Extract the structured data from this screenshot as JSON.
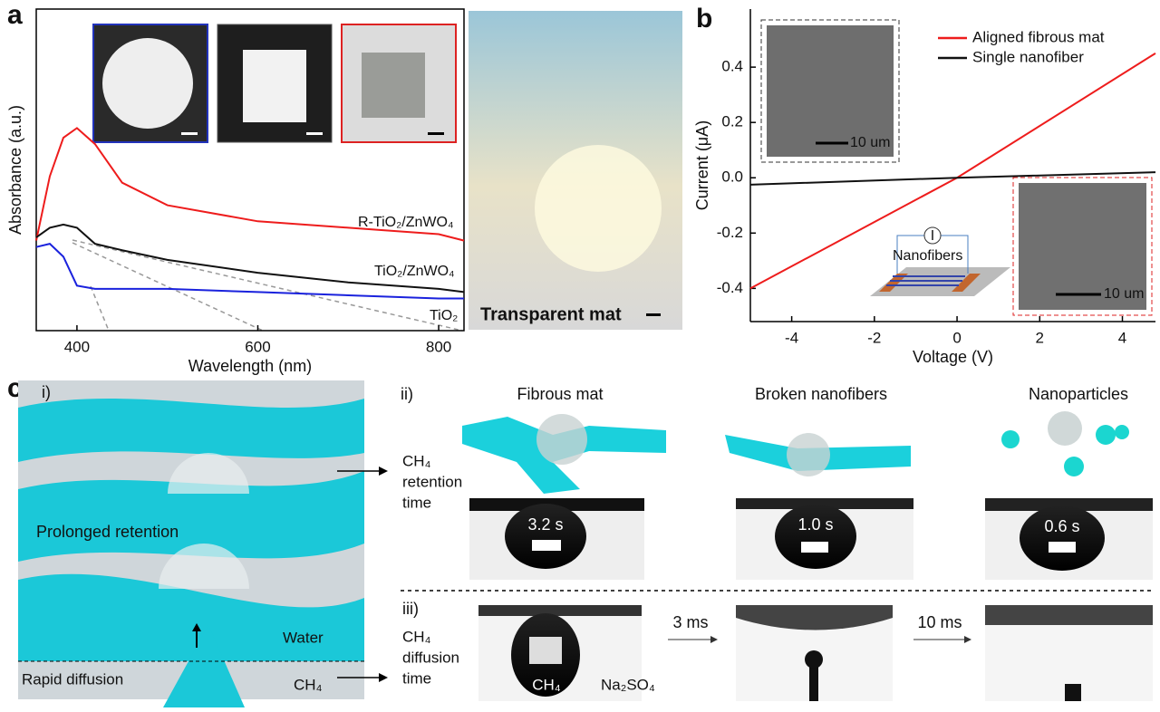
{
  "panel_labels": [
    "a",
    "b",
    "c"
  ],
  "chart_data": [
    {
      "type": "line",
      "x_label": "Wavelength (nm)",
      "y_label": "Absorbance (a.u.)",
      "x": [
        355,
        370,
        385,
        400,
        420,
        450,
        500,
        600,
        700,
        800,
        828
      ],
      "xlim": [
        355,
        828
      ],
      "xticks": [
        400,
        600,
        800
      ],
      "ylim": [
        0,
        1
      ],
      "frame": true,
      "series": [
        {
          "name": "R-TiO₂/ZnWO₄",
          "color": "#ee1c1c",
          "values": [
            0.28,
            0.48,
            0.6,
            0.63,
            0.58,
            0.46,
            0.39,
            0.34,
            0.32,
            0.3,
            0.28
          ]
        },
        {
          "name": "TiO₂/ZnWO₄",
          "color": "#111111",
          "values": [
            0.29,
            0.32,
            0.33,
            0.32,
            0.27,
            0.25,
            0.22,
            0.18,
            0.15,
            0.13,
            0.12
          ]
        },
        {
          "name": "TiO₂",
          "color": "#1a22dd",
          "values": [
            0.26,
            0.27,
            0.23,
            0.14,
            0.13,
            0.13,
            0.13,
            0.12,
            0.11,
            0.1,
            0.1
          ]
        }
      ]
    },
    {
      "type": "line",
      "x_label": "Voltage (V)",
      "y_label": "Current (μA)",
      "x": [
        -5,
        0,
        4.8
      ],
      "xlim": [
        -5,
        4.8
      ],
      "xticks": [
        -4,
        -2,
        0,
        2,
        4
      ],
      "ylim": [
        -0.52,
        0.61
      ],
      "yticks": [
        0.4,
        0.2,
        {
          "value": 0,
          "label": "0.0"
        },
        -0.2,
        -0.4
      ],
      "frame": false,
      "legend": "top-right",
      "series": [
        {
          "name": "Aligned fibrous mat",
          "color": "#ee1c1c",
          "values": [
            -0.4,
            0,
            0.45
          ]
        },
        {
          "name": "Single nanofiber",
          "color": "#111111",
          "values": [
            -0.025,
            0,
            0.02
          ]
        }
      ]
    }
  ],
  "panel_a_photo": {
    "label": "Transparent mat"
  },
  "panel_b_insets": {
    "scale_top": "10 um",
    "scale_bottom": "10 um",
    "meter": "I",
    "device": "Nanofibers"
  },
  "panel_c": {
    "i": "i)",
    "prolonged": "Prolonged retention",
    "water": "Water",
    "rapid": "Rapid diffusion",
    "ch4_bottom": "CH₄",
    "ii": "ii)",
    "headers": [
      "Fibrous mat",
      "Broken nanofibers",
      "Nanoparticles"
    ],
    "retention": [
      "CH₄",
      "retention",
      "time"
    ],
    "times": [
      "3.2 s",
      "1.0 s",
      "0.6 s"
    ],
    "iii": "iii)",
    "diffusion": [
      "CH₄",
      "diffusion",
      "time"
    ],
    "steps": [
      "3 ms",
      "10 ms"
    ],
    "bubble_gas": "CH₄",
    "solution": "Na₂SO₄"
  }
}
